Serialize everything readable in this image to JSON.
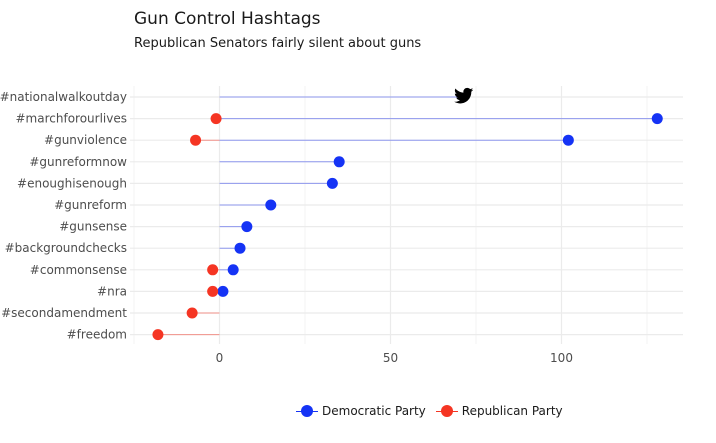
{
  "chart_data": {
    "type": "lollipop",
    "title": "Gun Control Hashtags",
    "subtitle": "Republican Senators fairly silent about guns",
    "xlabel": "",
    "ylabel": "",
    "xlim": [
      -27,
      136
    ],
    "xticks": [
      0,
      50,
      100
    ],
    "grid": true,
    "legend_position": "bottom",
    "colors": {
      "democratic": "#1533f5",
      "republican": "#f53523",
      "dem_line": "#8e98ef",
      "rep_line": "#f2928a",
      "grid": "#ebebeb"
    },
    "categories": [
      "#nationalwalkoutday",
      "#marchforourlives",
      "#gunviolence",
      "#gunreformnow",
      "#enoughisenough",
      "#gunreform",
      "#gunsense",
      "#backgroundchecks",
      "#commonsense",
      "#nra",
      "#secondamendment",
      "#freedom"
    ],
    "series": [
      {
        "name": "Democratic Party",
        "color": "#1533f5",
        "values": [
          71,
          128,
          102,
          35,
          33,
          15,
          8,
          6,
          4,
          1,
          null,
          null
        ]
      },
      {
        "name": "Republican Party",
        "color": "#f53523",
        "values": [
          null,
          -1,
          -7,
          null,
          null,
          null,
          null,
          null,
          -2,
          -2,
          -8,
          -18
        ]
      }
    ],
    "annotation_icon": "twitter-bird-icon"
  }
}
